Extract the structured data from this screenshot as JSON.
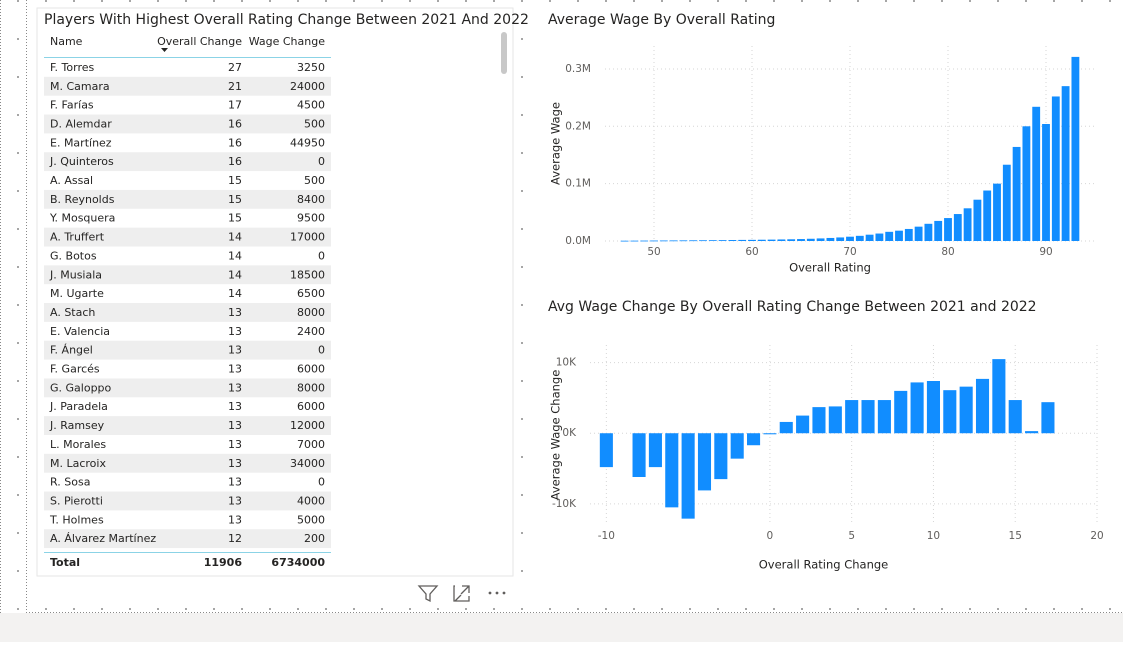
{
  "table": {
    "title": "Players With Highest Overall Rating Change Between 2021 And 2022",
    "columns": [
      "Name",
      "Overall Change",
      "Wage Change"
    ],
    "rows": [
      [
        "F. Torres",
        27,
        3250
      ],
      [
        "M. Camara",
        21,
        24000
      ],
      [
        "F. Farías",
        17,
        4500
      ],
      [
        "D. Alemdar",
        16,
        500
      ],
      [
        "E. Martínez",
        16,
        44950
      ],
      [
        "J. Quinteros",
        16,
        0
      ],
      [
        "A. Assal",
        15,
        500
      ],
      [
        "B. Reynolds",
        15,
        8400
      ],
      [
        "Y. Mosquera",
        15,
        9500
      ],
      [
        "A. Truffert",
        14,
        17000
      ],
      [
        "G. Botos",
        14,
        0
      ],
      [
        "J. Musiala",
        14,
        18500
      ],
      [
        "M. Ugarte",
        14,
        6500
      ],
      [
        "A. Stach",
        13,
        8000
      ],
      [
        "E. Valencia",
        13,
        2400
      ],
      [
        "F. Ángel",
        13,
        0
      ],
      [
        "F. Garcés",
        13,
        6000
      ],
      [
        "G. Galoppo",
        13,
        8000
      ],
      [
        "J. Paradela",
        13,
        6000
      ],
      [
        "J. Ramsey",
        13,
        12000
      ],
      [
        "L. Morales",
        13,
        7000
      ],
      [
        "M. Lacroix",
        13,
        34000
      ],
      [
        "R. Sosa",
        13,
        0
      ],
      [
        "S. Pierotti",
        13,
        4000
      ],
      [
        "T. Holmes",
        13,
        5000
      ],
      [
        "A. Álvarez Martínez",
        12,
        200
      ]
    ],
    "total": [
      "Total",
      11906,
      6734000
    ]
  },
  "chart_data": [
    {
      "type": "bar",
      "title": "Average Wage By Overall Rating",
      "x_label": "Overall Rating",
      "y_label": "Average Wage",
      "color": "#118dff",
      "x": [
        47,
        48,
        49,
        50,
        51,
        52,
        53,
        54,
        55,
        56,
        57,
        58,
        59,
        60,
        61,
        62,
        63,
        64,
        65,
        66,
        67,
        68,
        69,
        70,
        71,
        72,
        73,
        74,
        75,
        76,
        77,
        78,
        79,
        80,
        81,
        82,
        83,
        84,
        85,
        86,
        87,
        88,
        89,
        90,
        91,
        92,
        93
      ],
      "values": [
        500,
        600,
        700,
        800,
        900,
        1000,
        1100,
        1200,
        1300,
        1400,
        1500,
        1700,
        1900,
        2000,
        2200,
        2400,
        2700,
        3000,
        3400,
        3900,
        4500,
        5300,
        6200,
        7500,
        9000,
        11000,
        13000,
        16000,
        18000,
        21000,
        25000,
        30000,
        35000,
        40000,
        47000,
        57000,
        72000,
        88000,
        100000,
        133000,
        164000,
        200000,
        234000,
        204000,
        252000,
        270000,
        321000
      ],
      "xlim": [
        45,
        95
      ],
      "xticks": [
        50,
        60,
        70,
        80,
        90
      ],
      "ylim": [
        0,
        340000
      ],
      "yticks": [
        {
          "value": 0,
          "label": "0.0M"
        },
        {
          "value": 100000,
          "label": "0.1M"
        },
        {
          "value": 200000,
          "label": "0.2M"
        },
        {
          "value": 300000,
          "label": "0.3M"
        }
      ],
      "grid": true
    },
    {
      "type": "bar",
      "title": "Avg Wage Change By Overall Rating Change Between 2021 and 2022",
      "x_label": "Overall Rating Change",
      "y_label": "Average Wage Change",
      "color": "#118dff",
      "x": [
        -10,
        -9,
        -8,
        -7,
        -6,
        -5,
        -4,
        -3,
        -2,
        -1,
        0,
        1,
        2,
        3,
        4,
        5,
        6,
        7,
        8,
        9,
        10,
        11,
        12,
        13,
        14,
        15,
        16,
        17
      ],
      "values": [
        -4800,
        null,
        -6200,
        -4800,
        -10500,
        -12100,
        -8100,
        -6500,
        -3600,
        -1700,
        -150,
        1600,
        2500,
        3700,
        3800,
        4700,
        4700,
        4700,
        6000,
        7200,
        7400,
        6100,
        6600,
        7700,
        10500,
        4700,
        300,
        4400
      ],
      "xlim": [
        -11,
        20
      ],
      "xticks": [
        -10,
        0,
        5,
        10,
        15,
        20
      ],
      "ylim": [
        -13000,
        12500
      ],
      "yticks": [
        {
          "value": -10000,
          "label": "-10K"
        },
        {
          "value": 0,
          "label": "0K"
        },
        {
          "value": 10000,
          "label": "10K"
        }
      ],
      "grid": true
    }
  ]
}
